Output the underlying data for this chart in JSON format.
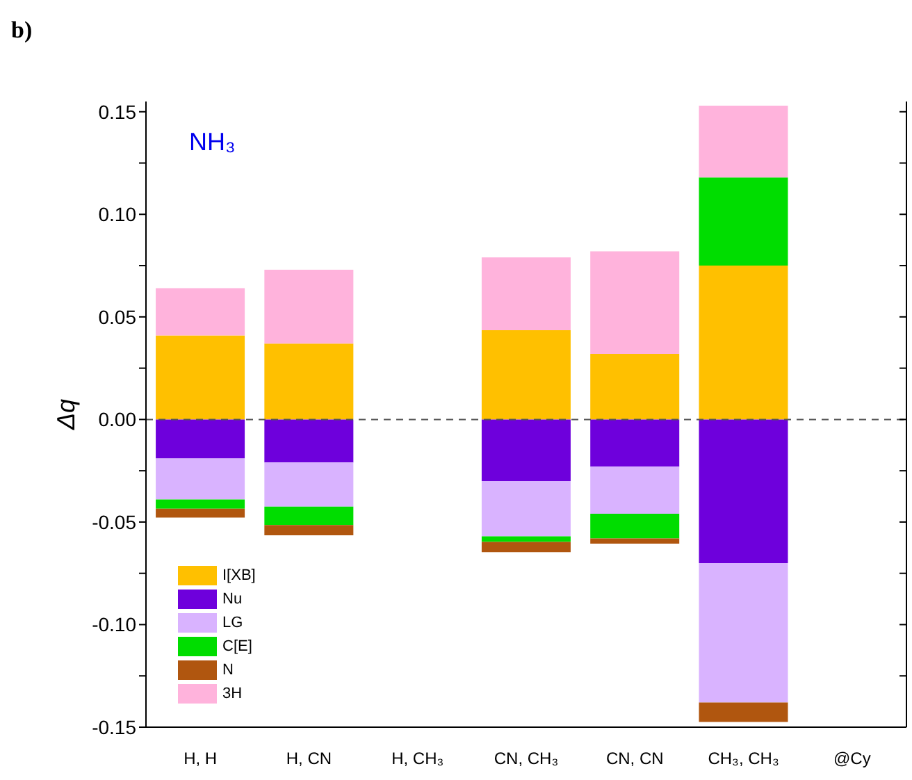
{
  "chart_data": {
    "type": "bar",
    "stacked": true,
    "annotations": [
      "b)",
      "NH₃"
    ],
    "ylabel": "Δq",
    "categories": [
      "H, H",
      "H, CN",
      "H, CH₃",
      "CN, CH₃",
      "CN, CN",
      "CH₃, CH₃",
      "@Cy"
    ],
    "series": [
      {
        "name": "I[XB]",
        "color": "#ffc000",
        "values": [
          0.041,
          0.037,
          null,
          0.0435,
          0.032,
          0.075,
          null
        ]
      },
      {
        "name": "Nu",
        "color": "#6e00dc",
        "values": [
          -0.019,
          -0.021,
          null,
          -0.03,
          -0.023,
          -0.07,
          null
        ]
      },
      {
        "name": "LG",
        "color": "#d9b3ff",
        "values": [
          -0.02,
          -0.0215,
          null,
          -0.027,
          -0.023,
          -0.068,
          null
        ]
      },
      {
        "name": "C[E]",
        "color": "#00dd00",
        "values": [
          -0.0045,
          -0.009,
          null,
          -0.0027,
          -0.012,
          0.043,
          null
        ]
      },
      {
        "name": "N",
        "color": "#b0560f",
        "values": [
          -0.0043,
          -0.005,
          null,
          -0.005,
          -0.0025,
          -0.0095,
          null
        ]
      },
      {
        "name": "3H",
        "color": "#ffb3dc",
        "values": [
          0.023,
          0.036,
          null,
          0.0355,
          0.05,
          0.035,
          null
        ]
      }
    ],
    "ylim": [
      -0.15,
      0.155
    ],
    "yticks": [
      -0.15,
      {
        "value": -0.125,
        "label": null
      },
      {
        "value": -0.1,
        "label": "-0.10"
      },
      {
        "value": -0.075,
        "label": null
      },
      -0.05,
      {
        "value": -0.025,
        "label": null
      },
      {
        "value": 0,
        "label": "0.00"
      },
      {
        "value": 0.025,
        "label": null
      },
      0.05,
      {
        "value": 0.075,
        "label": null
      },
      {
        "value": 0.1,
        "label": "0.10"
      },
      {
        "value": 0.125,
        "label": null
      },
      0.15
    ],
    "ref_lines": [
      {
        "axis": "y",
        "value": 0,
        "line_style": "dashed",
        "color": "#555555"
      }
    ],
    "legend": "bottom left",
    "grid": false
  }
}
